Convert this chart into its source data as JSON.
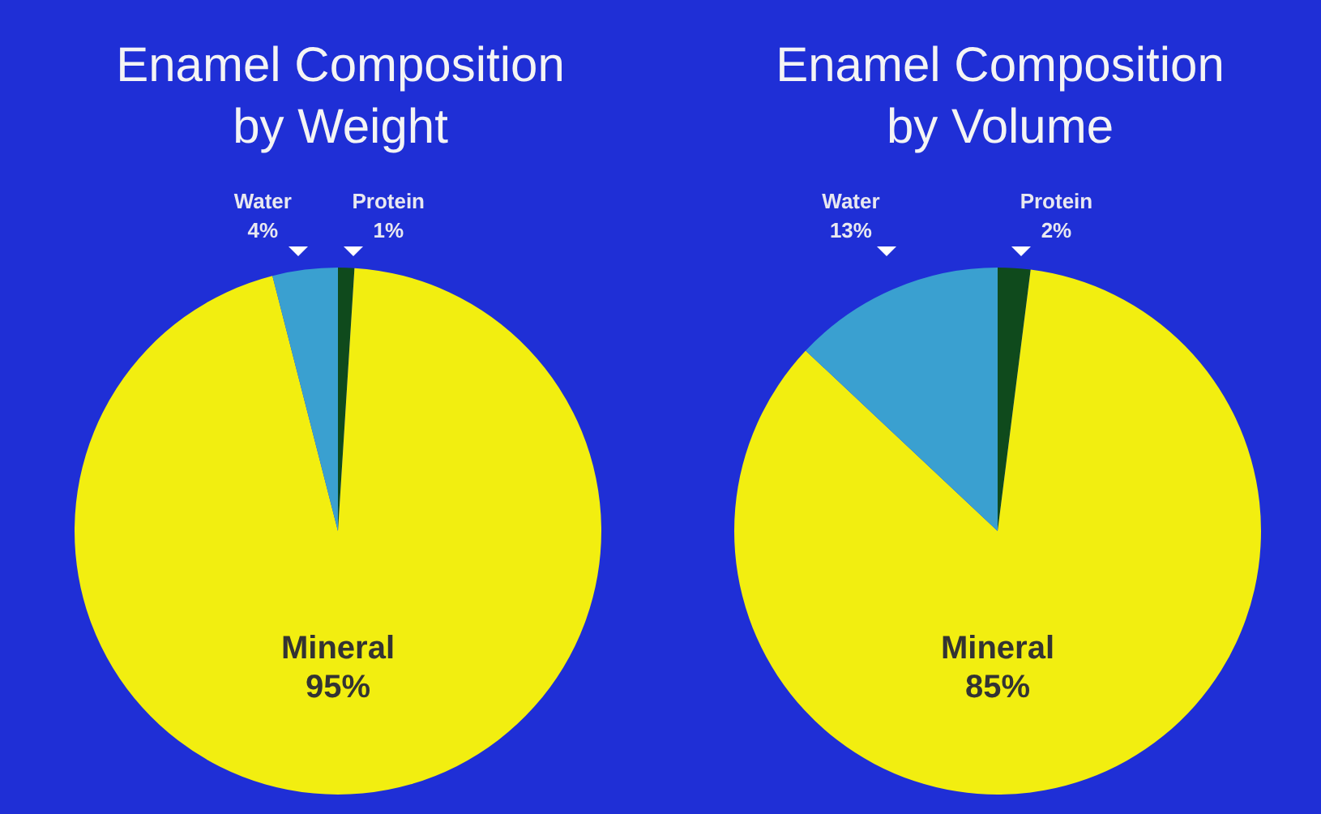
{
  "chart_data": [
    {
      "type": "pie",
      "title": "Enamel Composition by Weight",
      "categories": [
        "Protein",
        "Mineral",
        "Water"
      ],
      "values": [
        1,
        95,
        4
      ],
      "colors": [
        "#0f4a1c",
        "#f2ee10",
        "#3aa0d0"
      ],
      "value_labels": [
        "1%",
        "95%",
        "4%"
      ]
    },
    {
      "type": "pie",
      "title": "Enamel Composition by Volume",
      "categories": [
        "Protein",
        "Mineral",
        "Water"
      ],
      "values": [
        2,
        85,
        13
      ],
      "colors": [
        "#0f4a1c",
        "#f2ee10",
        "#3aa0d0"
      ],
      "value_labels": [
        "2%",
        "85%",
        "13%"
      ]
    }
  ]
}
